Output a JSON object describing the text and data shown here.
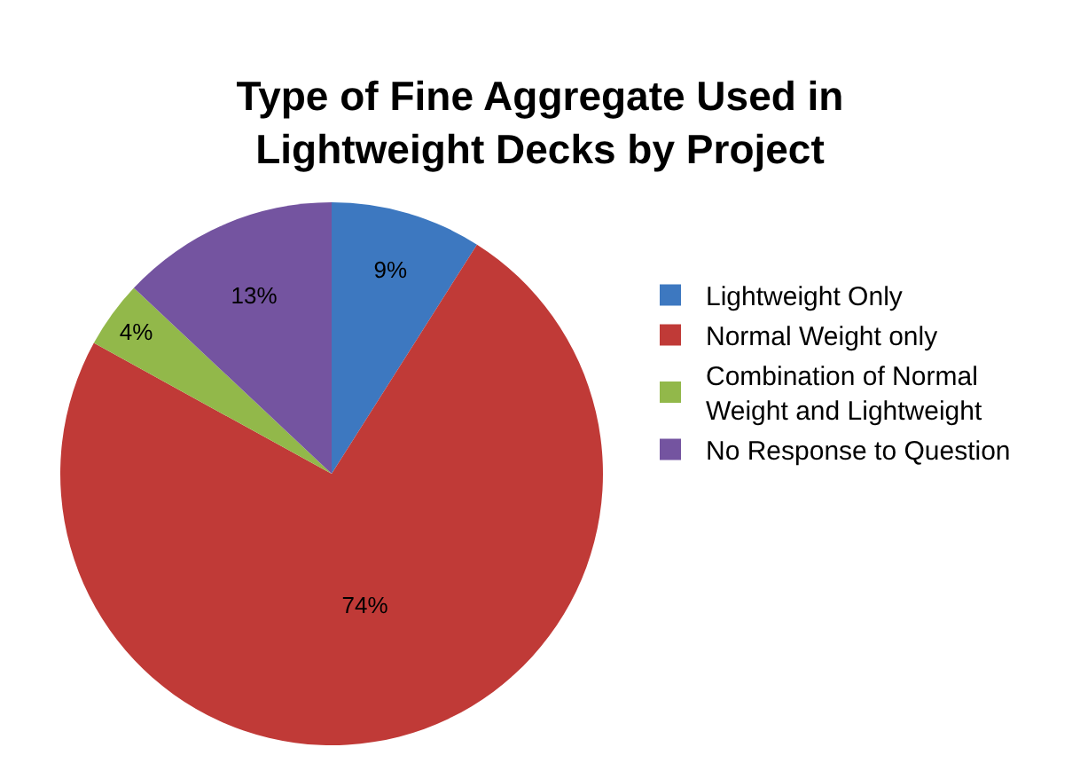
{
  "chart_data": {
    "type": "pie",
    "title": "Type of Fine Aggregate Used in Lightweight Decks by Project",
    "categories": [
      "Lightweight Only",
      "Normal Weight only",
      "Combination of Normal Weight and Lightweight",
      "No Response to Question"
    ],
    "values": [
      9,
      74,
      4,
      13
    ],
    "value_labels": [
      "9%",
      "74%",
      "4%",
      "13%"
    ],
    "colors": [
      "#3d78c0",
      "#c03a37",
      "#92b84a",
      "#7454a0"
    ],
    "legend": "right"
  }
}
